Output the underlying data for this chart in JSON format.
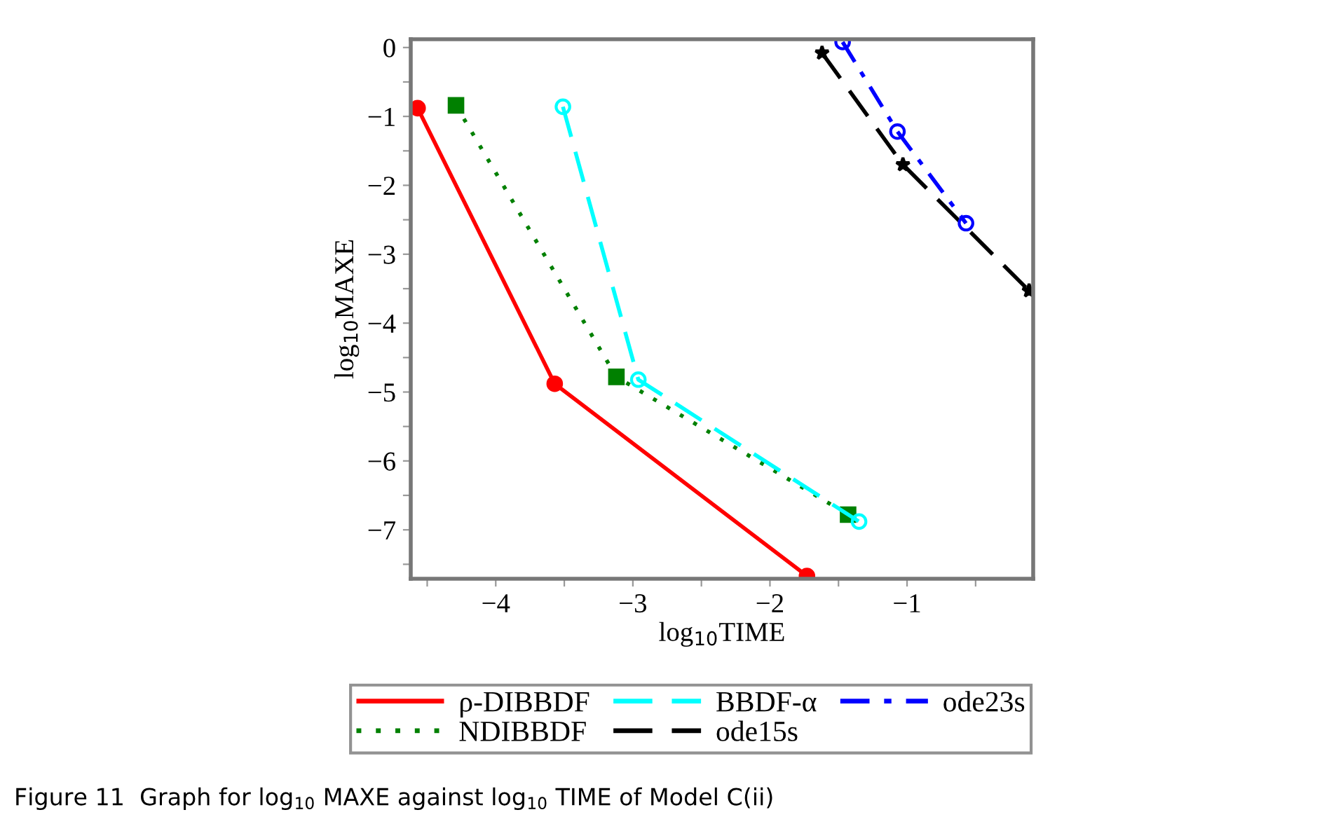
{
  "chart_data": {
    "type": "line",
    "xlabel": "log$_{10}$TIME",
    "ylabel": "log$_{10}$MAXE",
    "annotations": [
      "Figure 11  Graph for log$_{10}$ MAXE against log$_{10}$ TIME of Model C(ii)"
    ],
    "xlim": [
      -4.62,
      -0.08
    ],
    "ylim": [
      -7.71,
      0.12
    ],
    "xticks": [
      {
        "value": -4.5,
        "label": null
      },
      -4,
      {
        "value": -3.5,
        "label": null
      },
      -3,
      {
        "value": -2.5,
        "label": null
      },
      -2,
      {
        "value": -1.5,
        "label": null
      },
      -1,
      {
        "value": -0.5,
        "label": null
      }
    ],
    "yticks": [
      {
        "value": -7.5,
        "label": null
      },
      -7,
      {
        "value": -6.5,
        "label": null
      },
      -6,
      {
        "value": -5.5,
        "label": null
      },
      -5,
      {
        "value": -4.5,
        "label": null
      },
      -4,
      {
        "value": -3.5,
        "label": null
      },
      -3,
      {
        "value": -2.5,
        "label": null
      },
      -2,
      {
        "value": -1.5,
        "label": null
      },
      -1,
      {
        "value": -0.5,
        "label": null
      },
      0
    ],
    "grid": false,
    "legend": "bottom",
    "series": [
      {
        "name": "ρ-DIBBDF",
        "color": "#ff0000",
        "marker": "circle",
        "line_style": "solid",
        "x": [
          -4.57,
          -3.57,
          -1.73
        ],
        "values": [
          -0.88,
          -4.88,
          -7.67
        ]
      },
      {
        "name": "NDIBBDF",
        "color": "#008000",
        "marker": "square",
        "line_style": "dotted",
        "x": [
          -4.29,
          -3.12,
          -1.43
        ],
        "values": [
          -0.84,
          -4.78,
          -6.78
        ]
      },
      {
        "name": "BBDF-α",
        "color": "#00ffff",
        "marker": "circle",
        "line_style": "dashed",
        "x": [
          -3.51,
          -2.96,
          -1.35
        ],
        "values": [
          -0.86,
          -4.82,
          -6.88
        ]
      },
      {
        "name": "ode15s",
        "color": "#000000",
        "marker": "star",
        "line_style": "dashed",
        "x": [
          -1.62,
          -1.03,
          -0.11
        ],
        "values": [
          -0.08,
          -1.7,
          -3.53
        ]
      },
      {
        "name": "ode23s",
        "color": "#0000ff",
        "marker": "circle",
        "line_style": "dashdot",
        "x": [
          -1.47,
          -1.07,
          -0.57
        ],
        "values": [
          0.08,
          -1.22,
          -2.55
        ]
      }
    ]
  }
}
